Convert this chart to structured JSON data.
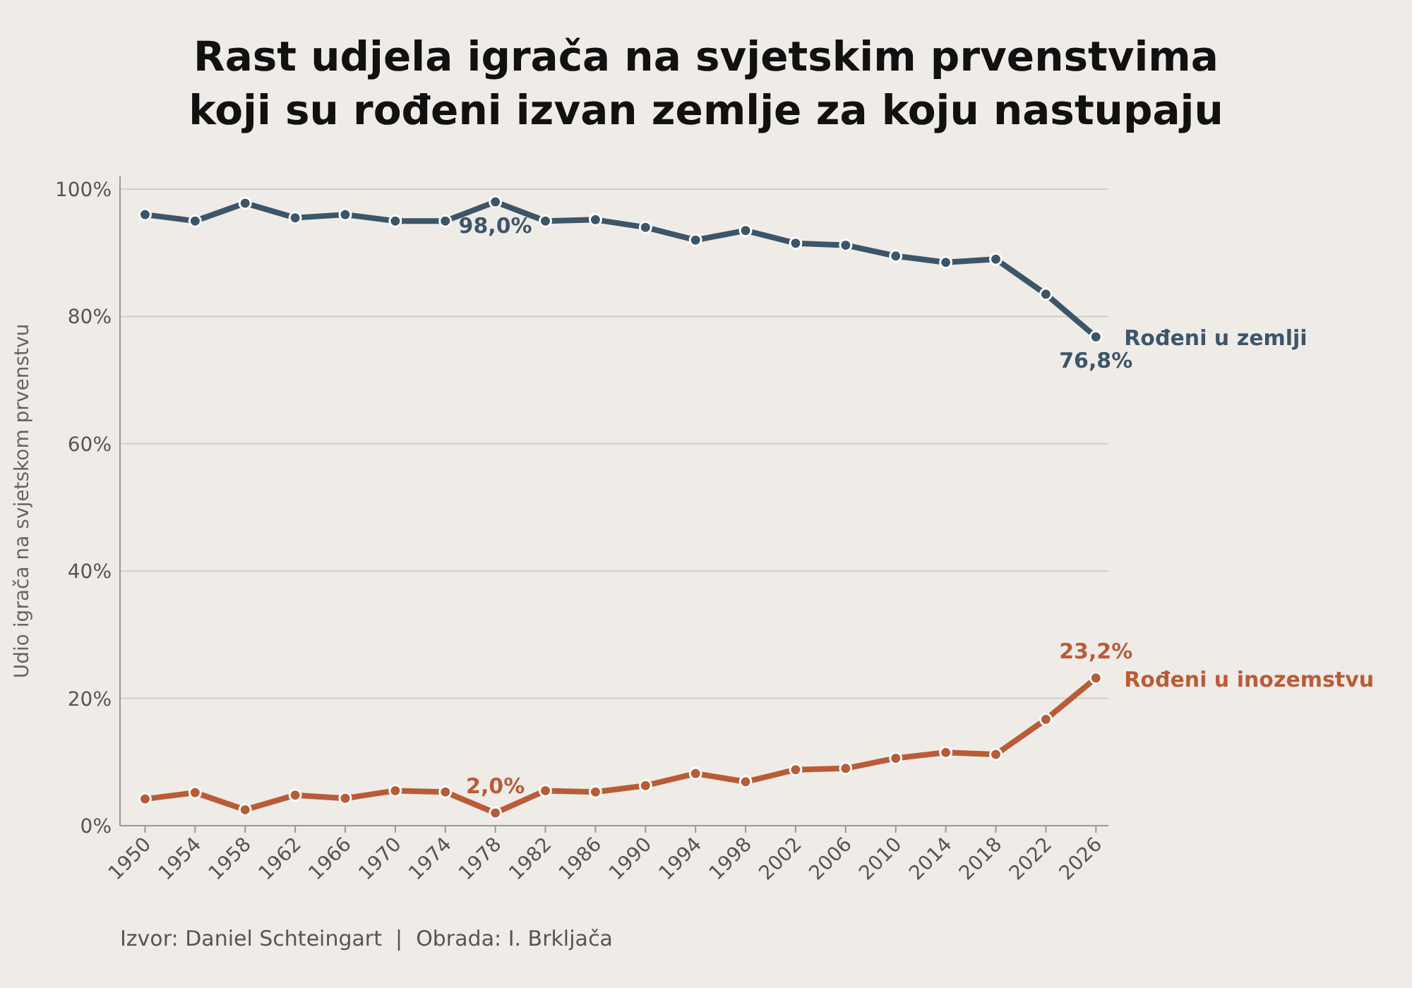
{
  "chart_data": {
    "type": "line",
    "title": "Rast udjela igrača na svjetskim prvenstvima\nkoji su rođeni izvan zemlje za koju nastupaju",
    "ylabel": "Udio igrača na svjetskom prvenstvu",
    "x": [
      1950,
      1954,
      1958,
      1962,
      1966,
      1970,
      1974,
      1978,
      1982,
      1986,
      1990,
      1994,
      1998,
      2002,
      2006,
      2010,
      2014,
      2018,
      2022,
      2026
    ],
    "xlim": [
      1948,
      2027
    ],
    "xticks": [
      1950,
      1954,
      1958,
      1962,
      1966,
      1970,
      1974,
      1978,
      1982,
      1986,
      1990,
      1994,
      1998,
      2002,
      2006,
      2010,
      2014,
      2018,
      2022,
      2026
    ],
    "ylim": [
      0,
      102
    ],
    "yticks": [
      {
        "value": 0,
        "label": "0%"
      },
      {
        "value": 20,
        "label": "20%"
      },
      {
        "value": 40,
        "label": "40%"
      },
      {
        "value": 60,
        "label": "60%"
      },
      {
        "value": 80,
        "label": "80%"
      },
      {
        "value": 100,
        "label": "100%"
      }
    ],
    "series": [
      {
        "name": "Rođeni u zemlji",
        "color": "#3d5569",
        "values": [
          96,
          95,
          97.8,
          95.5,
          96,
          95,
          95,
          98.0,
          95,
          95.2,
          94,
          92,
          93.5,
          91.5,
          91.2,
          89.5,
          88.5,
          89,
          83.5,
          76.8
        ],
        "value_labels": [
          null,
          null,
          null,
          null,
          null,
          null,
          null,
          "98,0%",
          null,
          null,
          null,
          null,
          null,
          null,
          null,
          null,
          null,
          null,
          null,
          "76,8%"
        ]
      },
      {
        "name": "Rođeni u inozemstvu",
        "color": "#b85c38",
        "values": [
          4.2,
          5.2,
          2.5,
          4.8,
          4.3,
          5.5,
          5.3,
          2.0,
          5.5,
          5.3,
          6.3,
          8.2,
          6.9,
          8.8,
          9.0,
          10.6,
          11.5,
          11.2,
          16.7,
          23.2
        ],
        "value_labels": [
          null,
          null,
          null,
          null,
          null,
          null,
          null,
          "2,0%",
          null,
          null,
          null,
          null,
          null,
          null,
          null,
          null,
          null,
          null,
          null,
          "23,2%"
        ]
      }
    ],
    "grid": "y",
    "marker": "circle",
    "line_style": "solid",
    "annotations": [
      "Izvor: Daniel Schteingart  |  Obrada: I. Brkljača"
    ]
  }
}
